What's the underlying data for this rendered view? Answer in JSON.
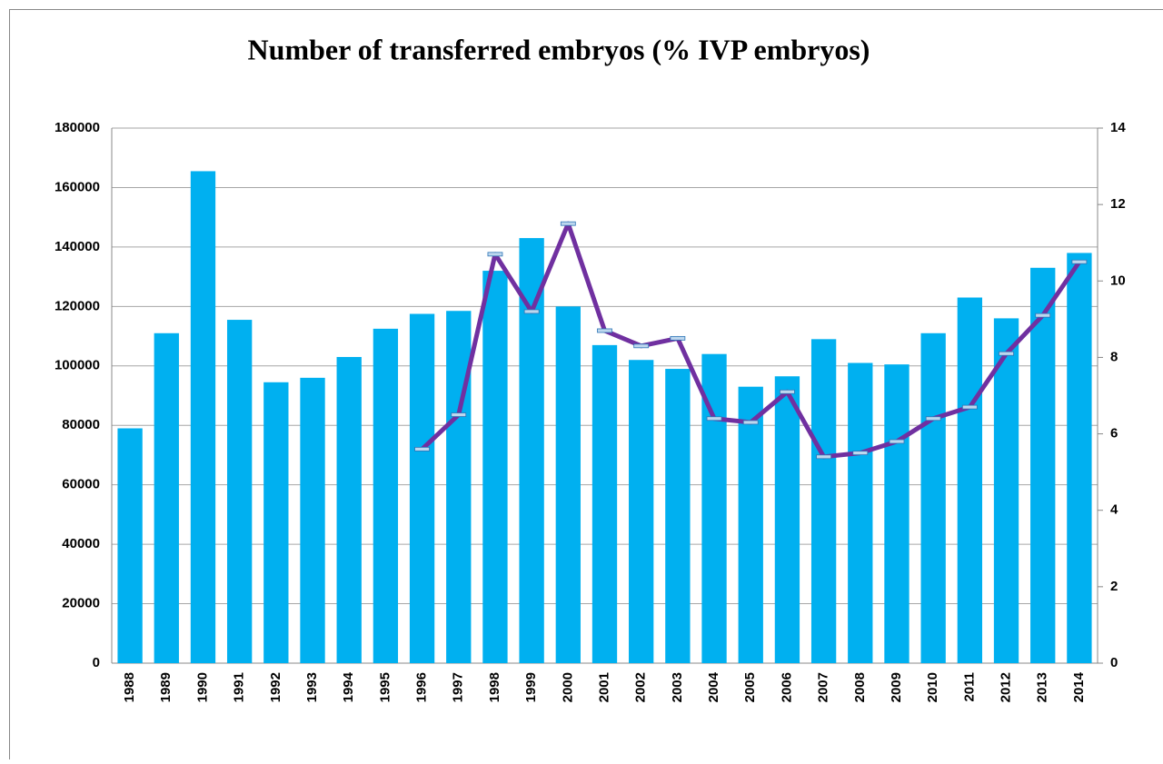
{
  "chart_data": {
    "type": "bar-line",
    "title": "Number of transferred embryos  (% IVP embryos)",
    "categories": [
      "1988",
      "1989",
      "1990",
      "1991",
      "1992",
      "1993",
      "1994",
      "1995",
      "1996",
      "1997",
      "1998",
      "1999",
      "2000",
      "2001",
      "2002",
      "2003",
      "2004",
      "2005",
      "2006",
      "2007",
      "2008",
      "2009",
      "2010",
      "2011",
      "2012",
      "2013",
      "2014"
    ],
    "series": [
      {
        "type": "bar",
        "color": "#00b0f0",
        "values": [
          79000,
          111000,
          165500,
          115500,
          94500,
          96000,
          103000,
          112500,
          117500,
          118500,
          132000,
          143000,
          120000,
          107000,
          102000,
          99000,
          104000,
          93000,
          96500,
          109000,
          101000,
          100500,
          111000,
          123000,
          116000,
          133000,
          138000
        ]
      },
      {
        "type": "line",
        "axis": "y2",
        "color": "#7030a0",
        "values": [
          null,
          null,
          null,
          null,
          null,
          null,
          null,
          null,
          5.6,
          6.5,
          10.7,
          9.2,
          11.5,
          8.7,
          8.3,
          8.5,
          6.4,
          6.3,
          7.1,
          5.4,
          5.5,
          5.8,
          6.4,
          6.7,
          8.1,
          9.1,
          10.5
        ]
      }
    ],
    "ylim": [
      0,
      180000
    ],
    "yticks": [
      0,
      20000,
      40000,
      60000,
      80000,
      100000,
      120000,
      140000,
      160000,
      180000
    ],
    "y2lim": [
      0,
      14
    ],
    "y2ticks": [
      0,
      2,
      4,
      6,
      8,
      10,
      12,
      14
    ],
    "grid": true
  }
}
